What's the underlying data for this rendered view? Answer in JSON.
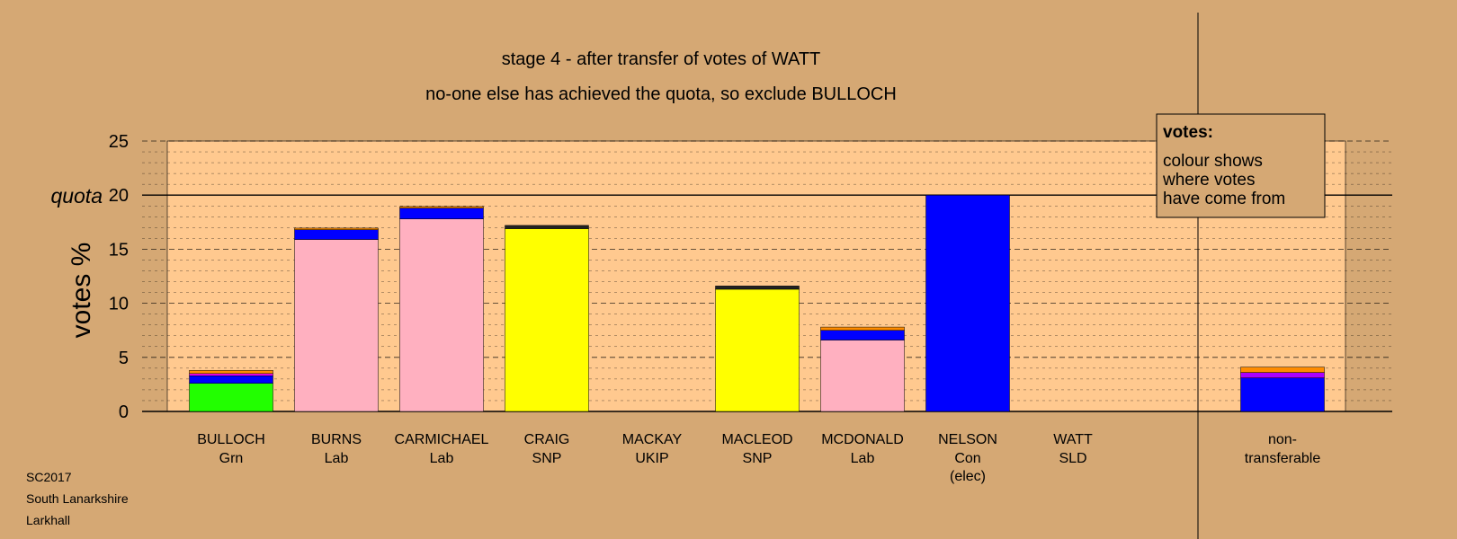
{
  "chart_data": {
    "type": "bar",
    "stacked": true,
    "title": "stage 4 - after transfer of votes of WATT",
    "subtitle": "no-one else has achieved the quota, so exclude BULLOCH",
    "ylabel": "votes %",
    "ylim": [
      0,
      25
    ],
    "yticks": [
      0,
      5,
      10,
      15,
      20,
      25
    ],
    "quota_value": 20,
    "quota_label": "quota",
    "grid": "dashed horizontal",
    "categories": [
      {
        "name": "BULLOCH",
        "party": "Grn",
        "note": ""
      },
      {
        "name": "BURNS",
        "party": "Lab",
        "note": ""
      },
      {
        "name": "CARMICHAEL",
        "party": "Lab",
        "note": ""
      },
      {
        "name": "CRAIG",
        "party": "SNP",
        "note": ""
      },
      {
        "name": "MACKAY",
        "party": "UKIP",
        "note": ""
      },
      {
        "name": "MACLEOD",
        "party": "SNP",
        "note": ""
      },
      {
        "name": "MCDONALD",
        "party": "Lab",
        "note": ""
      },
      {
        "name": "NELSON",
        "party": "Con",
        "note": "(elec)"
      },
      {
        "name": "WATT",
        "party": "SLD",
        "note": ""
      }
    ],
    "nontransferable": {
      "label_line1": "non-",
      "label_line2": "transferable"
    },
    "stacks": [
      [
        {
          "color": "#22ff00",
          "value": 2.6
        },
        {
          "color": "#0000ff",
          "value": 0.7
        },
        {
          "color": "#ff00ff",
          "value": 0.2
        },
        {
          "color": "#ff8c00",
          "value": 0.3
        }
      ],
      [
        {
          "color": "#ffb0c0",
          "value": 15.9
        },
        {
          "color": "#0000ff",
          "value": 0.9
        },
        {
          "color": "#ff8c00",
          "value": 0.15
        }
      ],
      [
        {
          "color": "#ffb0c0",
          "value": 17.8
        },
        {
          "color": "#0000ff",
          "value": 1.0
        },
        {
          "color": "#ff8c00",
          "value": 0.15
        }
      ],
      [
        {
          "color": "#ffff00",
          "value": 16.9
        },
        {
          "color": "#222222",
          "value": 0.3
        }
      ],
      [],
      [
        {
          "color": "#ffff00",
          "value": 11.3
        },
        {
          "color": "#222222",
          "value": 0.3
        }
      ],
      [
        {
          "color": "#ffb0c0",
          "value": 6.6
        },
        {
          "color": "#0000ff",
          "value": 0.9
        },
        {
          "color": "#ff8c00",
          "value": 0.3
        }
      ],
      [
        {
          "color": "#0000ff",
          "value": 20.0
        }
      ],
      []
    ],
    "nontransferable_stack": [
      {
        "color": "#0000ff",
        "value": 3.1
      },
      {
        "color": "#aa00ff",
        "value": 0.5
      },
      {
        "color": "#ff8c00",
        "value": 0.5
      }
    ]
  },
  "legend": {
    "title": "votes:",
    "lines": [
      "colour shows",
      "where votes",
      "have come from"
    ]
  },
  "footer": [
    "SC2017",
    "South Lanarkshire",
    "Larkhall"
  ],
  "colors": {
    "background": "#d5a874",
    "plot_area": "#ffc98f",
    "legend_bg": "#d5a874"
  }
}
